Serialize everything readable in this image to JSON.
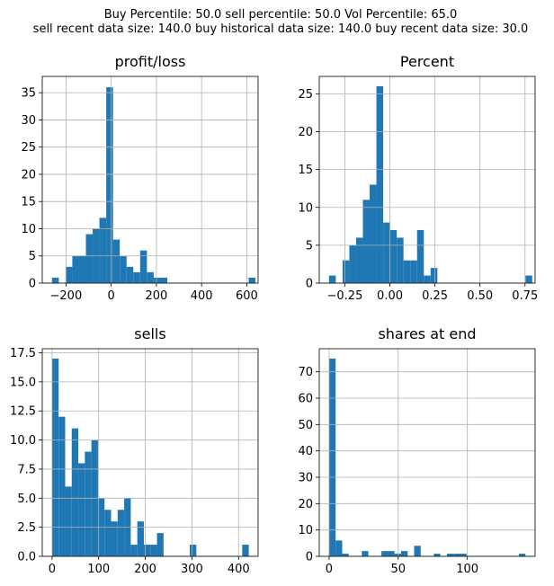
{
  "figure": {
    "suptitle_line1": "Buy Percentile: 50.0 sell percentile: 50.0 Vol Percentile: 65.0",
    "suptitle_line2": "sell recent data size: 140.0 buy historical data size: 140.0 buy recent data size: 30.0"
  },
  "colors": {
    "bar": "#1f77b4",
    "grid": "#b0b0b0"
  },
  "chart_data": [
    {
      "type": "bar",
      "title": "profit/loss",
      "grid": true,
      "xlim": [
        -305,
        650
      ],
      "ylim": [
        0,
        38
      ],
      "xticks": [
        -200,
        0,
        200,
        400,
        600
      ],
      "xtick_labels": [
        "−200",
        "0",
        "200",
        "400",
        "600"
      ],
      "yticks": [
        0,
        5,
        10,
        15,
        20,
        25,
        30,
        35
      ],
      "ytick_labels": [
        "0",
        "5",
        "10",
        "15",
        "20",
        "25",
        "30",
        "35"
      ],
      "bin_edges": [
        -262,
        -232,
        -202,
        -172,
        -142,
        -112,
        -82,
        -52,
        -22,
        8,
        38,
        68,
        98,
        128,
        158,
        188,
        218,
        248,
        278,
        308,
        338,
        368,
        398,
        428,
        458,
        488,
        518,
        548,
        578,
        608,
        638
      ],
      "values": [
        1,
        0,
        3,
        5,
        5,
        9,
        10,
        12,
        36,
        8,
        5,
        3,
        2,
        6,
        2,
        1,
        1,
        0,
        0,
        0,
        0,
        0,
        0,
        0,
        0,
        0,
        0,
        0,
        0,
        1
      ]
    },
    {
      "type": "bar",
      "title": "Percent",
      "grid": true,
      "xlim": [
        -0.392,
        0.806
      ],
      "ylim": [
        0,
        27.3
      ],
      "xticks": [
        -0.25,
        0,
        0.25,
        0.5,
        0.75
      ],
      "xtick_labels": [
        "−0.25",
        "0.00",
        "0.25",
        "0.50",
        "0.75"
      ],
      "yticks": [
        0,
        5,
        10,
        15,
        20,
        25
      ],
      "ytick_labels": [
        "0",
        "5",
        "10",
        "15",
        "20",
        "25"
      ],
      "bin_edges": [
        -0.338,
        -0.3004,
        -0.2628,
        -0.2252,
        -0.1876,
        -0.15,
        -0.1124,
        -0.0748,
        -0.0372,
        0.0004,
        0.038,
        0.0756,
        0.1132,
        0.1508,
        0.1884,
        0.226,
        0.2636,
        0.3012,
        0.3388,
        0.3764,
        0.414,
        0.4516,
        0.4892,
        0.5268,
        0.5644,
        0.602,
        0.6396,
        0.6772,
        0.7148,
        0.7524,
        0.79
      ],
      "values": [
        1,
        0,
        3,
        5,
        6,
        11,
        13,
        26,
        8,
        7,
        6,
        3,
        3,
        7,
        1,
        2,
        0,
        0,
        0,
        0,
        0,
        0,
        0,
        0,
        0,
        0,
        0,
        0,
        0,
        1
      ]
    },
    {
      "type": "bar",
      "title": "sells",
      "grid": true,
      "xlim": [
        -21,
        442
      ],
      "ylim": [
        0,
        17.85
      ],
      "xticks": [
        0,
        100,
        200,
        300,
        400
      ],
      "xtick_labels": [
        "0",
        "100",
        "200",
        "300",
        "400"
      ],
      "yticks": [
        0,
        2.5,
        5,
        7.5,
        10,
        12.5,
        15,
        17.5
      ],
      "ytick_labels": [
        "0.0",
        "2.5",
        "5.0",
        "7.5",
        "10.0",
        "12.5",
        "15.0",
        "17.5"
      ],
      "bin_edges": [
        0,
        14.07,
        28.13,
        42.2,
        56.27,
        70.33,
        84.4,
        98.47,
        112.53,
        126.6,
        140.67,
        154.73,
        168.8,
        182.87,
        196.93,
        211,
        225.07,
        239.13,
        253.2,
        267.27,
        281.33,
        295.4,
        309.47,
        323.53,
        337.6,
        351.67,
        365.73,
        379.8,
        393.87,
        407.93,
        422
      ],
      "values": [
        17,
        12,
        6,
        11,
        8,
        9,
        10,
        5,
        4,
        3,
        4,
        5,
        1,
        3,
        1,
        1,
        2,
        0,
        0,
        0,
        0,
        1,
        0,
        0,
        0,
        0,
        0,
        0,
        0,
        1
      ]
    },
    {
      "type": "bar",
      "title": "shares at end",
      "grid": true,
      "xlim": [
        -7.1,
        149
      ],
      "ylim": [
        0,
        78.75
      ],
      "xticks": [
        0,
        50,
        100
      ],
      "xtick_labels": [
        "0",
        "50",
        "100"
      ],
      "yticks": [
        0,
        10,
        20,
        30,
        40,
        50,
        60,
        70
      ],
      "ytick_labels": [
        "0",
        "10",
        "20",
        "30",
        "40",
        "50",
        "60",
        "70"
      ],
      "bin_edges": [
        0,
        4.73,
        9.47,
        14.2,
        18.93,
        23.67,
        28.4,
        33.13,
        37.87,
        42.6,
        47.33,
        52.07,
        56.8,
        61.53,
        66.27,
        71,
        75.73,
        80.47,
        85.2,
        89.93,
        94.67,
        99.4,
        104.13,
        108.87,
        113.6,
        118.33,
        123.07,
        127.8,
        132.53,
        137.27,
        142
      ],
      "values": [
        75,
        6,
        1,
        0,
        0,
        2,
        0,
        0,
        2,
        2,
        1,
        2,
        0,
        4,
        0,
        0,
        1,
        0,
        1,
        1,
        1,
        0,
        0,
        0,
        0,
        0,
        0,
        0,
        0,
        1
      ]
    }
  ]
}
